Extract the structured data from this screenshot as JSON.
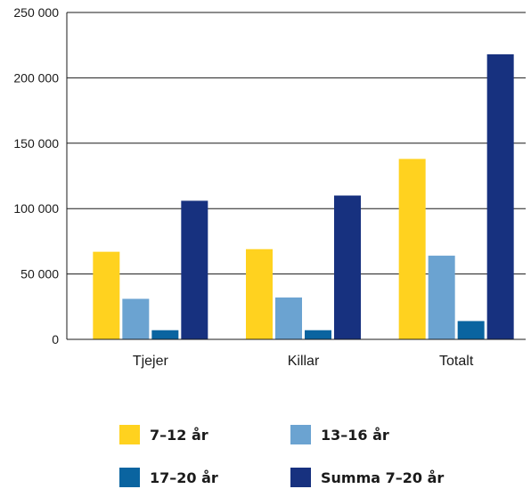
{
  "chart_data": {
    "type": "bar",
    "categories": [
      "Tjejer",
      "Killar",
      "Totalt"
    ],
    "series": [
      {
        "name": "7–12 år",
        "color": "#FFD21F",
        "values": [
          67000,
          69000,
          138000
        ]
      },
      {
        "name": "13–16 år",
        "color": "#6BA3D1",
        "values": [
          31000,
          32000,
          64000
        ]
      },
      {
        "name": "17–20 år",
        "color": "#0A64A0",
        "values": [
          7000,
          7000,
          14000
        ]
      },
      {
        "name": "Summa 7–20 år",
        "color": "#17317F",
        "values": [
          106000,
          110000,
          218000
        ]
      }
    ],
    "y_ticks": [
      "0",
      "50 000",
      "100 000",
      "150 000",
      "200 000",
      "250 000"
    ],
    "ylim": [
      0,
      250000
    ],
    "grid": true,
    "legend_position": "bottom",
    "title": "",
    "xlabel": "",
    "ylabel": ""
  }
}
